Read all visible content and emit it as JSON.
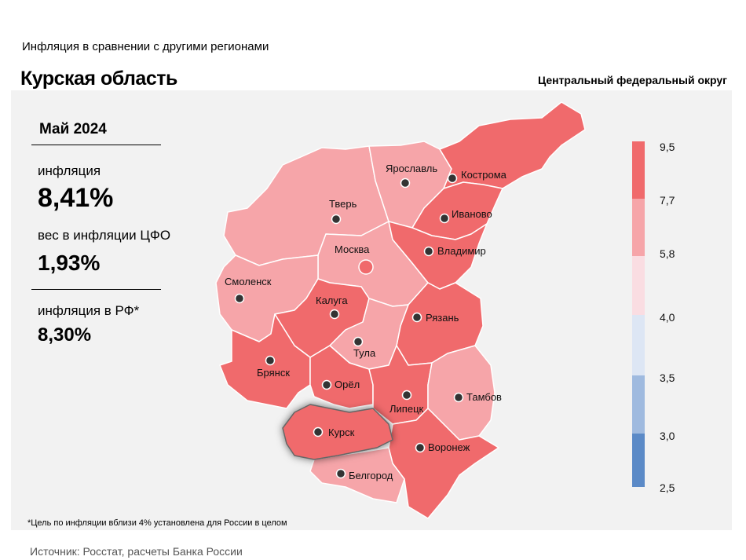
{
  "header": {
    "subtitle": "Инфляция в сравнении с другими регионами",
    "title": "Курская область",
    "district": "Центральный федеральный округ"
  },
  "stats": {
    "period": "Май 2024",
    "inflation_label": "инфляция",
    "inflation_value": "8,41%",
    "weight_label": "вес в инфляции ЦФО",
    "weight_value": "1,93%",
    "rf_label": "инфляция в РФ*",
    "rf_value": "8,30%"
  },
  "colors": {
    "band_7_7_9_5": "#f06a6c",
    "band_5_8_7_7": "#f6a5a9",
    "band_4_0_5_8": "#fadde2",
    "band_3_5_4_0": "#dde6f4",
    "band_3_0_3_5": "#9fbadf",
    "band_2_5_3_0": "#5b8ac7"
  },
  "legend": {
    "ticks": [
      "9,5",
      "7,7",
      "5,8",
      "4,0",
      "3,5",
      "3,0",
      "2,5"
    ]
  },
  "regions": [
    {
      "key": "kostroma",
      "name": "Кострома",
      "band": "band_7_7_9_5"
    },
    {
      "key": "yaroslavl",
      "name": "Ярославль",
      "band": "band_5_8_7_7"
    },
    {
      "key": "tver",
      "name": "Тверь",
      "band": "band_5_8_7_7"
    },
    {
      "key": "ivanovo",
      "name": "Иваново",
      "band": "band_7_7_9_5"
    },
    {
      "key": "moskva",
      "name": "Москва",
      "band": "band_5_8_7_7"
    },
    {
      "key": "vladimir",
      "name": "Владимир",
      "band": "band_7_7_9_5"
    },
    {
      "key": "smolensk",
      "name": "Смоленск",
      "band": "band_5_8_7_7"
    },
    {
      "key": "kaluga",
      "name": "Калуга",
      "band": "band_7_7_9_5"
    },
    {
      "key": "ryazan",
      "name": "Рязань",
      "band": "band_7_7_9_5"
    },
    {
      "key": "tula",
      "name": "Тула",
      "band": "band_5_8_7_7"
    },
    {
      "key": "bryansk",
      "name": "Брянск",
      "band": "band_7_7_9_5"
    },
    {
      "key": "orel",
      "name": "Орёл",
      "band": "band_7_7_9_5"
    },
    {
      "key": "lipetsk",
      "name": "Липецк",
      "band": "band_7_7_9_5"
    },
    {
      "key": "tambov",
      "name": "Тамбов",
      "band": "band_5_8_7_7"
    },
    {
      "key": "kursk",
      "name": "Курск",
      "band": "band_7_7_9_5"
    },
    {
      "key": "voronezh",
      "name": "Воронеж",
      "band": "band_7_7_9_5"
    },
    {
      "key": "belgorod",
      "name": "Белгород",
      "band": "band_5_8_7_7"
    }
  ],
  "footnote": "*Цель по инфляции вблизи 4% установлена для России в целом",
  "source": "Источник: Росстат, расчеты Банка России"
}
